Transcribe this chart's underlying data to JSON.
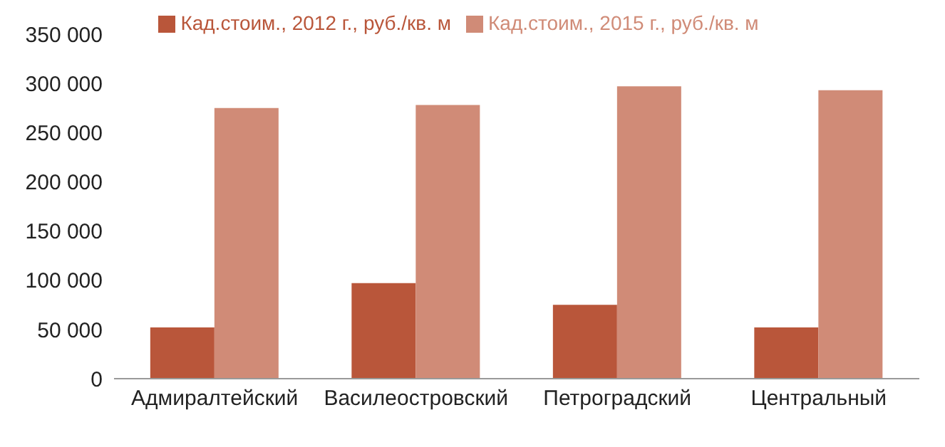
{
  "chart_data": {
    "type": "bar",
    "categories": [
      "Адмиралтейский",
      "Василеостровский",
      "Петроградский",
      "Центральный"
    ],
    "series": [
      {
        "name": "Кад.стоим., 2012 г., руб./кв. м",
        "color": "#b9563a",
        "values": [
          52000,
          97000,
          75000,
          52000
        ]
      },
      {
        "name": "Кад.стоим., 2015 г., руб./кв. м",
        "color": "#d08b77",
        "values": [
          275000,
          278000,
          297000,
          293000
        ]
      }
    ],
    "ylim": [
      0,
      350000
    ],
    "yticks": [
      {
        "value": 0,
        "label": "0"
      },
      {
        "value": 50000,
        "label": "50 000"
      },
      {
        "value": 100000,
        "label": "100 000"
      },
      {
        "value": 150000,
        "label": "150 000"
      },
      {
        "value": 200000,
        "label": "200 000"
      },
      {
        "value": 250000,
        "label": "250 000"
      },
      {
        "value": 300000,
        "label": "300 000"
      },
      {
        "value": 350000,
        "label": "350 000"
      }
    ],
    "grid": false,
    "legend": "top"
  }
}
